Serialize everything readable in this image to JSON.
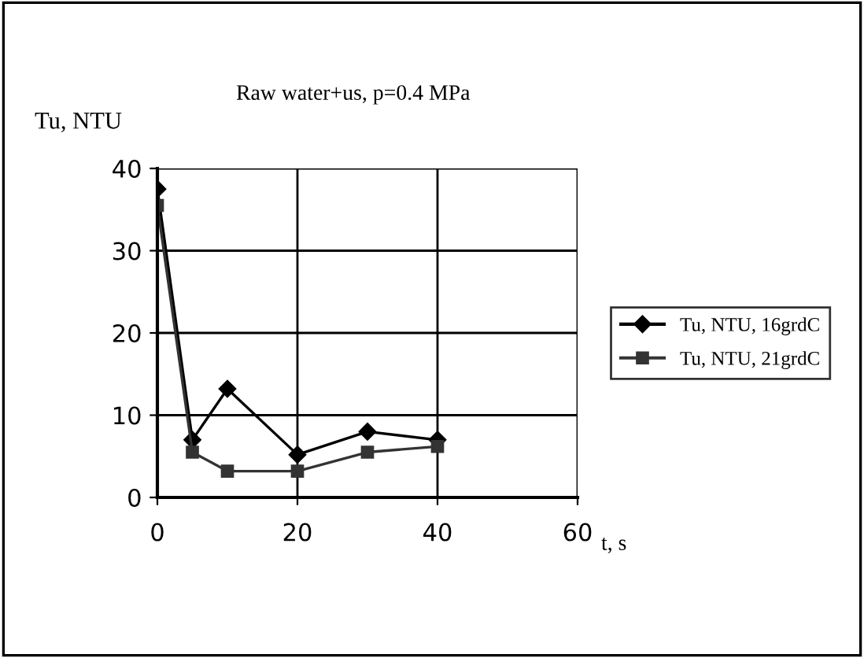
{
  "chart_data": {
    "type": "line",
    "title": "Raw water+us, p=0.4 MPa",
    "xlabel": "t, s",
    "ylabel": "Tu, NTU",
    "x": [
      0,
      5,
      10,
      20,
      30,
      40
    ],
    "series": [
      {
        "name": "Tu, NTU, 16grdC",
        "color": "#000000",
        "marker": "diamond",
        "values": [
          37.5,
          7,
          13.2,
          5.2,
          8,
          7
        ]
      },
      {
        "name": "Tu, NTU, 21grdC",
        "color": "#333333",
        "marker": "square",
        "values": [
          35.5,
          5.5,
          3.2,
          3.2,
          5.5,
          6.2
        ]
      }
    ],
    "xlim": [
      0,
      60
    ],
    "xticks": [
      0,
      20,
      40,
      60
    ],
    "ylim": [
      0,
      40
    ],
    "yticks": [
      0,
      10,
      20,
      30,
      40
    ],
    "grid": true,
    "legend": "right",
    "line_style": "solid"
  }
}
